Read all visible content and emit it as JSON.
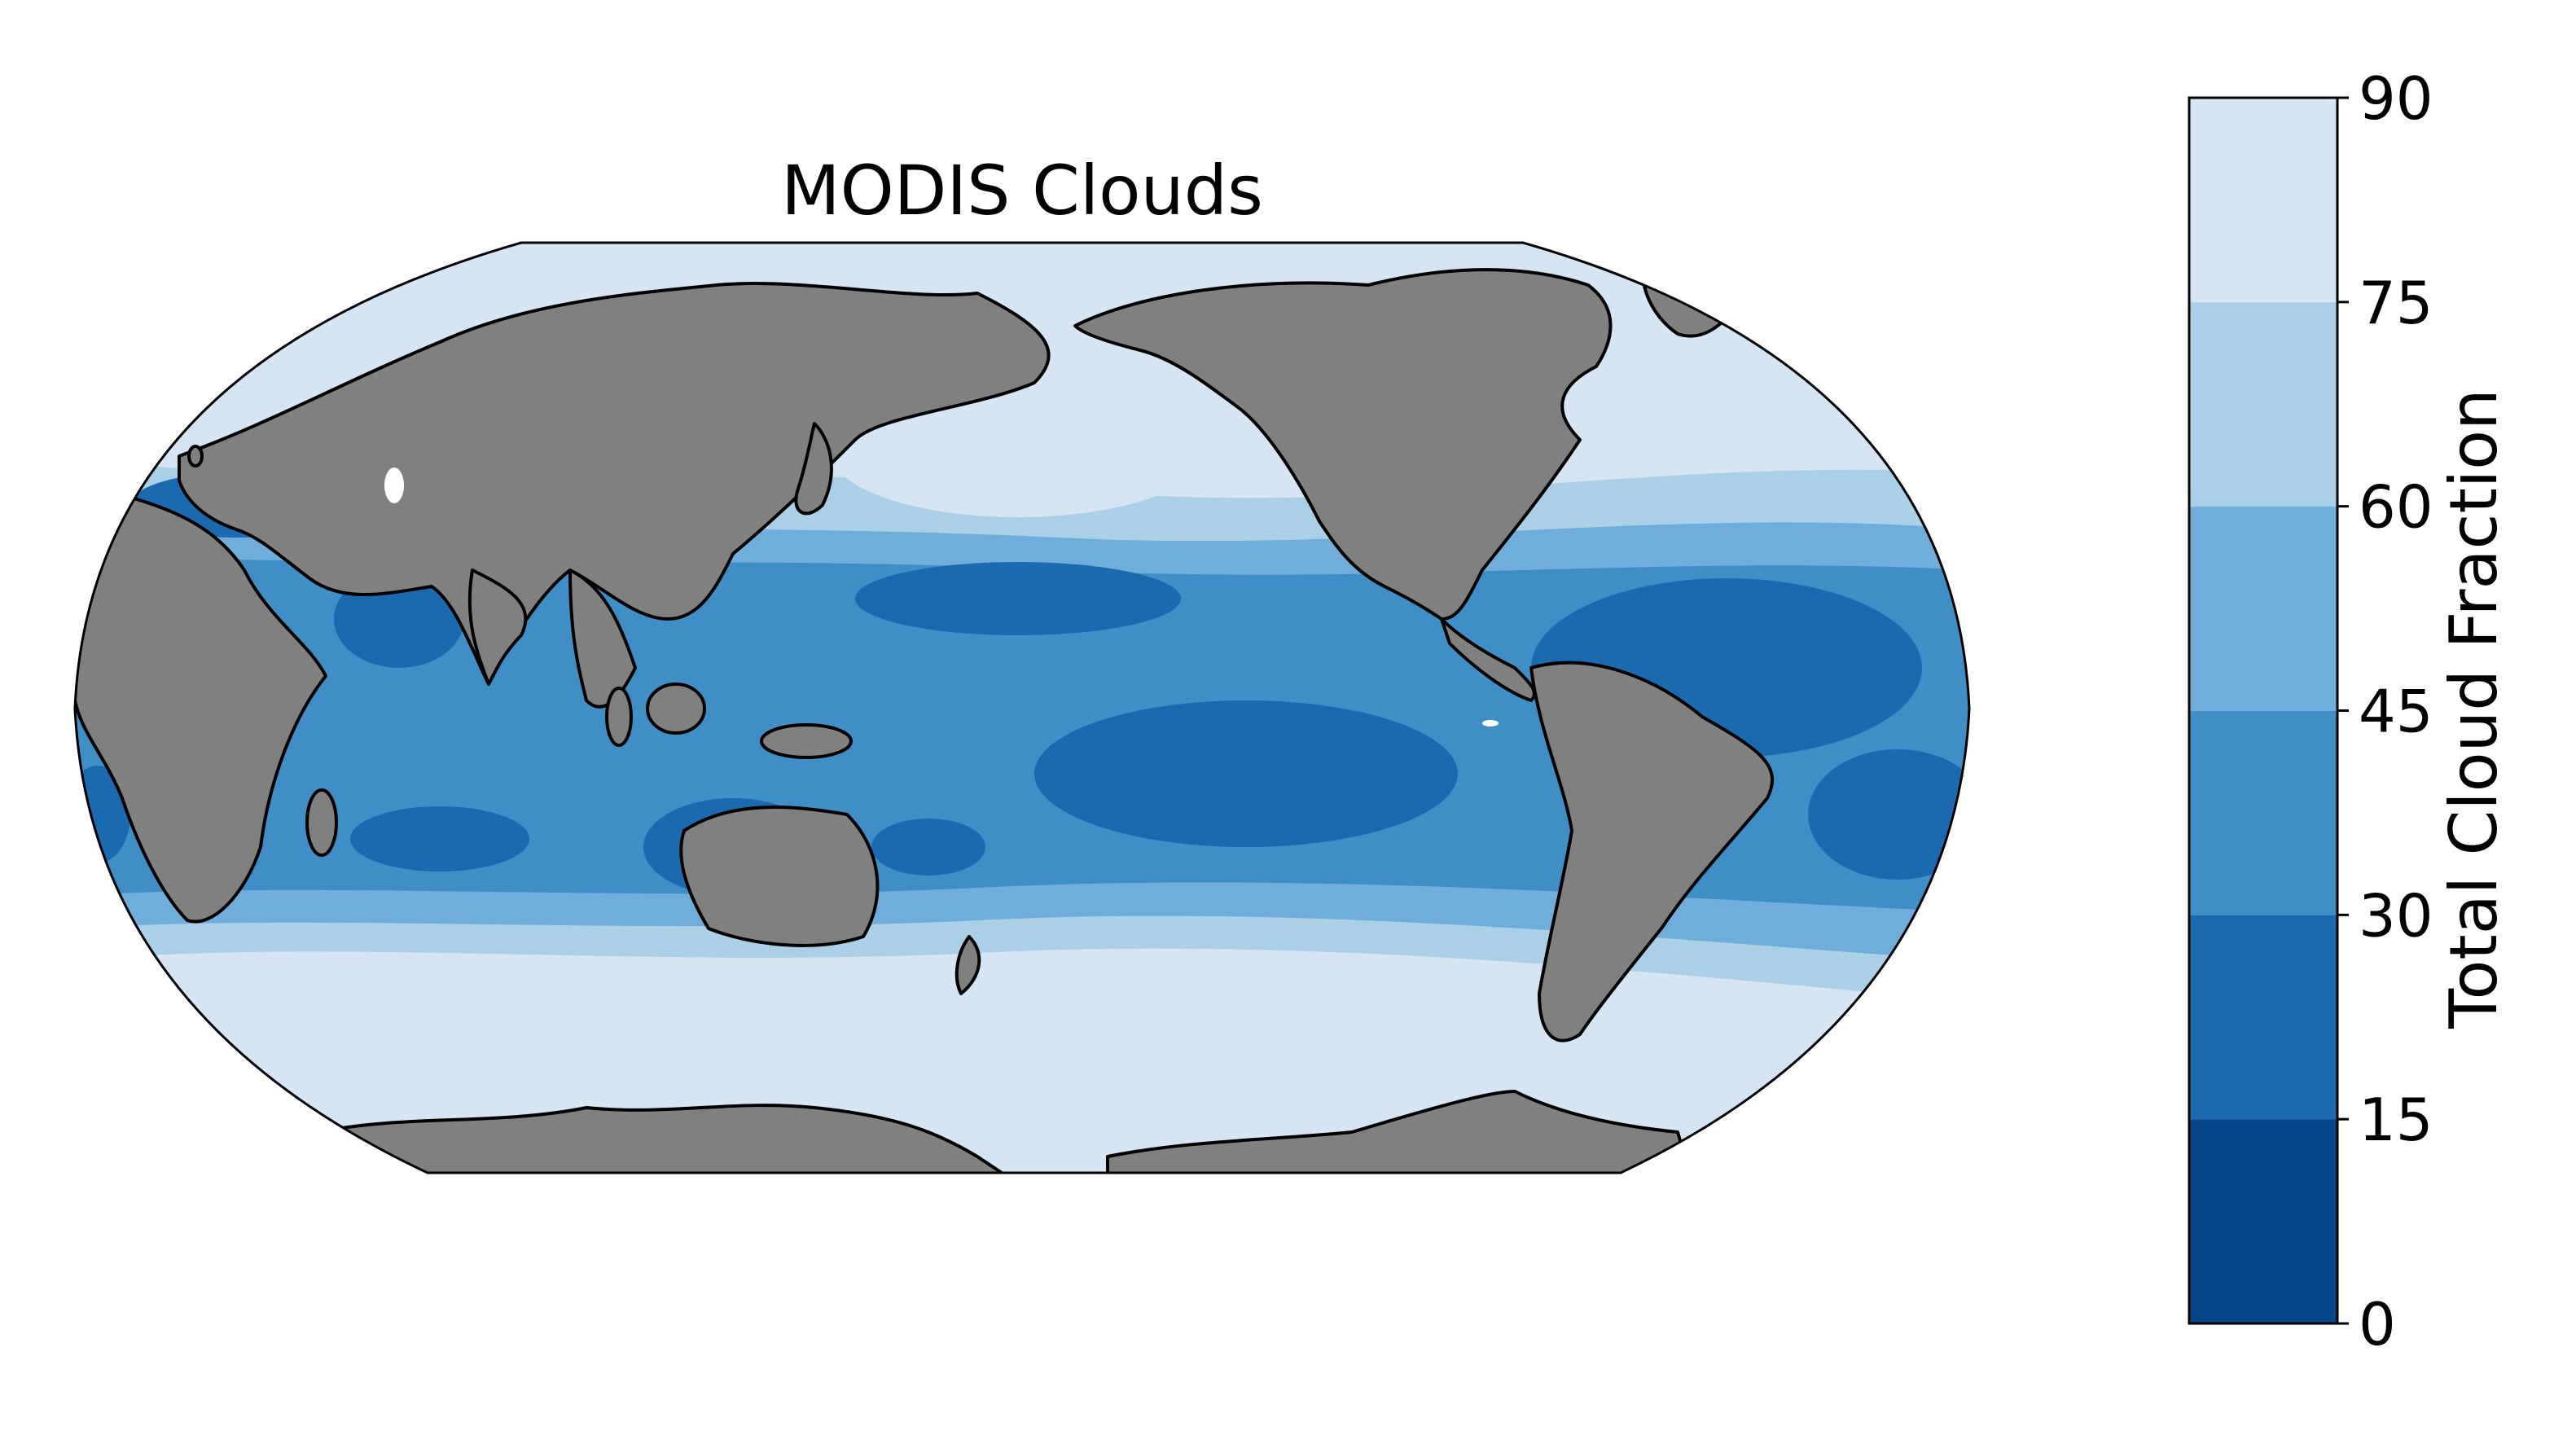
{
  "title": "MODIS Clouds",
  "colorbar": {
    "label": "Total Cloud Fraction",
    "ticks": [
      "0",
      "15",
      "30",
      "45",
      "60",
      "75",
      "90"
    ],
    "colors": [
      "#08468a",
      "#1b69af",
      "#3f8ec6",
      "#70addb",
      "#aad0e8",
      "#d5e5f4"
    ]
  },
  "map_colors": {
    "land": "#808080",
    "coastline": "#000000",
    "missing": "#ffffff"
  }
}
